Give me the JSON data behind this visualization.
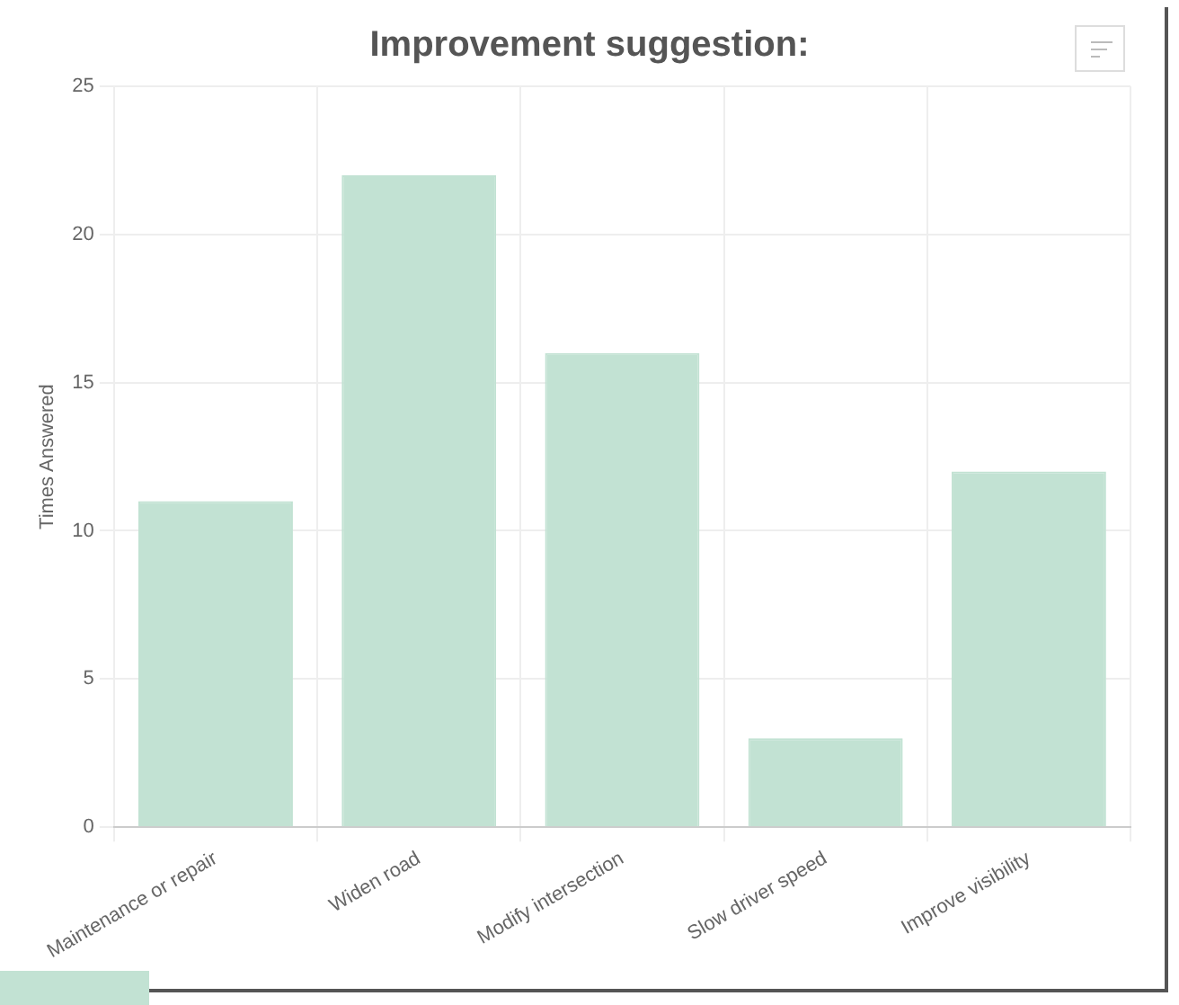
{
  "chart_data": {
    "type": "bar",
    "title": "Improvement suggestion:",
    "ylabel": "Times Answered",
    "categories": [
      "Maintenance or repair",
      "Widen road",
      "Modify intersection",
      "Slow driver speed",
      "Improve visibility"
    ],
    "values": [
      11,
      22,
      16,
      3,
      12
    ],
    "color": "#c2e2d3",
    "ylim": [
      0,
      25
    ],
    "yticks": [
      0,
      5,
      10,
      15,
      20,
      25
    ],
    "grid": true
  }
}
